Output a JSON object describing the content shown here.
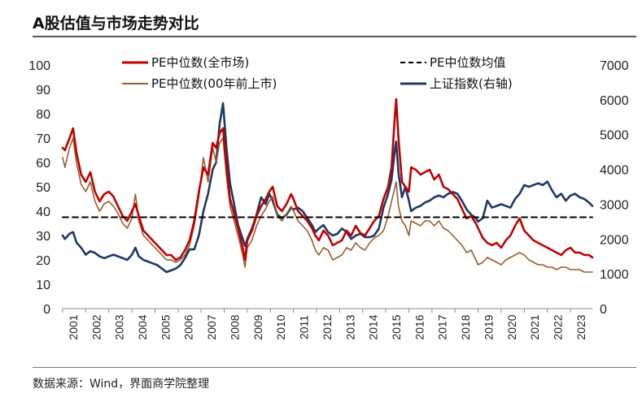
{
  "title": "A股估值与市场走势对比",
  "source": "数据来源：Wind，界面商学院整理",
  "colors": {
    "pe_all": "#c00000",
    "pe_pre2000": "#9c5a2c",
    "pe_mean": "#000000",
    "sh_index": "#1f3864"
  },
  "chart_data": {
    "type": "line",
    "title": "A股估值与市场走势对比",
    "x_range": [
      2001,
      2023.95
    ],
    "x_ticks": [
      "2001",
      "2002",
      "2003",
      "2004",
      "2005",
      "2006",
      "2007",
      "2008",
      "2009",
      "2010",
      "2011",
      "2012",
      "2013",
      "2014",
      "2015",
      "2016",
      "2017",
      "2018",
      "2019",
      "2020",
      "2021",
      "2022",
      "2023"
    ],
    "y_left": {
      "ticks": [
        0,
        10,
        20,
        30,
        40,
        50,
        60,
        70,
        80,
        90,
        100
      ],
      "lim": [
        0,
        100
      ]
    },
    "y_right": {
      "ticks": [
        0,
        1000,
        2000,
        3000,
        4000,
        5000,
        6000,
        7000
      ],
      "lim": [
        0,
        7000
      ]
    },
    "legend": [
      "PE中位数(全市场)",
      "PE中位数(00年前上市)",
      "PE中位数均值",
      "上证指数(右轴)"
    ],
    "series": [
      {
        "name": "PE中位数(全市场)",
        "axis": "left",
        "x": [
          2001.0,
          2001.1,
          2001.3,
          2001.45,
          2001.6,
          2001.8,
          2002.0,
          2002.2,
          2002.4,
          2002.6,
          2002.8,
          2003.0,
          2003.2,
          2003.4,
          2003.6,
          2003.8,
          2004.0,
          2004.15,
          2004.3,
          2004.5,
          2004.7,
          2004.9,
          2005.1,
          2005.3,
          2005.5,
          2005.7,
          2005.9,
          2006.1,
          2006.3,
          2006.5,
          2006.7,
          2006.9,
          2007.1,
          2007.3,
          2007.5,
          2007.65,
          2007.8,
          2007.95,
          2008.1,
          2008.25,
          2008.4,
          2008.6,
          2008.8,
          2008.9,
          2009.0,
          2009.2,
          2009.4,
          2009.6,
          2009.8,
          2009.95,
          2010.1,
          2010.3,
          2010.5,
          2010.7,
          2010.9,
          2011.0,
          2011.2,
          2011.4,
          2011.6,
          2011.8,
          2011.95,
          2012.1,
          2012.3,
          2012.5,
          2012.7,
          2012.9,
          2013.1,
          2013.3,
          2013.5,
          2013.7,
          2013.9,
          2014.1,
          2014.3,
          2014.5,
          2014.7,
          2014.9,
          2015.1,
          2015.25,
          2015.4,
          2015.45,
          2015.55,
          2015.7,
          2015.85,
          2016.0,
          2016.1,
          2016.3,
          2016.5,
          2016.7,
          2016.9,
          2017.1,
          2017.3,
          2017.5,
          2017.7,
          2017.9,
          2018.1,
          2018.3,
          2018.5,
          2018.7,
          2018.9,
          2019.0,
          2019.2,
          2019.4,
          2019.6,
          2019.8,
          2020.0,
          2020.2,
          2020.4,
          2020.6,
          2020.8,
          2021.0,
          2021.2,
          2021.4,
          2021.6,
          2021.8,
          2022.0,
          2022.2,
          2022.4,
          2022.6,
          2022.8,
          2023.0,
          2023.2,
          2023.4,
          2023.6,
          2023.8,
          2023.95
        ],
        "values": [
          66,
          65,
          70,
          74,
          64,
          55,
          52,
          56,
          48,
          44,
          47,
          48,
          46,
          42,
          38,
          36,
          40,
          43,
          38,
          32,
          30,
          28,
          26,
          24,
          22,
          22,
          20,
          21,
          24,
          28,
          36,
          48,
          58,
          55,
          68,
          66,
          72,
          74,
          58,
          45,
          40,
          33,
          25,
          20,
          28,
          32,
          38,
          42,
          45,
          48,
          50,
          42,
          40,
          43,
          47,
          45,
          40,
          38,
          36,
          33,
          30,
          28,
          32,
          30,
          26,
          27,
          28,
          32,
          30,
          34,
          31,
          30,
          33,
          36,
          38,
          45,
          50,
          58,
          80,
          86,
          70,
          52,
          50,
          48,
          58,
          57,
          55,
          56,
          57,
          53,
          55,
          50,
          49,
          47,
          45,
          41,
          37,
          38,
          35,
          33,
          29,
          27,
          26,
          27,
          25,
          28,
          30,
          34,
          37,
          32,
          30,
          28,
          27,
          26,
          25,
          24,
          23,
          22,
          24,
          25,
          23,
          23,
          22,
          22,
          21
        ]
      },
      {
        "name": "PE中位数(00年前上市)",
        "axis": "left",
        "x": [
          2001.0,
          2001.1,
          2001.3,
          2001.45,
          2001.6,
          2001.8,
          2002.0,
          2002.2,
          2002.4,
          2002.6,
          2002.8,
          2003.0,
          2003.2,
          2003.4,
          2003.6,
          2003.8,
          2004.0,
          2004.15,
          2004.3,
          2004.5,
          2004.7,
          2004.9,
          2005.1,
          2005.3,
          2005.5,
          2005.7,
          2005.9,
          2006.1,
          2006.3,
          2006.5,
          2006.7,
          2006.9,
          2007.1,
          2007.3,
          2007.5,
          2007.65,
          2007.8,
          2007.95,
          2008.1,
          2008.25,
          2008.4,
          2008.6,
          2008.8,
          2008.9,
          2009.0,
          2009.2,
          2009.4,
          2009.6,
          2009.8,
          2009.95,
          2010.1,
          2010.3,
          2010.5,
          2010.7,
          2010.9,
          2011.0,
          2011.2,
          2011.4,
          2011.6,
          2011.8,
          2011.95,
          2012.1,
          2012.3,
          2012.5,
          2012.7,
          2012.9,
          2013.1,
          2013.3,
          2013.5,
          2013.7,
          2013.9,
          2014.1,
          2014.3,
          2014.5,
          2014.7,
          2014.9,
          2015.1,
          2015.25,
          2015.4,
          2015.45,
          2015.55,
          2015.7,
          2015.85,
          2016.0,
          2016.1,
          2016.3,
          2016.5,
          2016.7,
          2016.9,
          2017.1,
          2017.3,
          2017.5,
          2017.7,
          2017.9,
          2018.1,
          2018.3,
          2018.5,
          2018.7,
          2018.9,
          2019.0,
          2019.2,
          2019.4,
          2019.6,
          2019.8,
          2020.0,
          2020.2,
          2020.4,
          2020.6,
          2020.8,
          2021.0,
          2021.2,
          2021.4,
          2021.6,
          2021.8,
          2022.0,
          2022.2,
          2022.4,
          2022.6,
          2022.8,
          2023.0,
          2023.2,
          2023.4,
          2023.6,
          2023.8,
          2023.95
        ],
        "values": [
          62,
          58,
          66,
          70,
          60,
          51,
          48,
          52,
          44,
          40,
          43,
          44,
          42,
          39,
          35,
          33,
          37,
          47,
          36,
          30,
          28,
          26,
          24,
          22,
          20,
          20,
          19,
          20,
          22,
          26,
          34,
          46,
          62,
          52,
          66,
          60,
          68,
          70,
          54,
          42,
          37,
          30,
          22,
          17,
          25,
          28,
          34,
          38,
          41,
          44,
          46,
          38,
          36,
          39,
          42,
          40,
          36,
          34,
          32,
          28,
          24,
          22,
          25,
          24,
          20,
          21,
          22,
          25,
          24,
          27,
          25,
          24,
          27,
          29,
          30,
          32,
          38,
          44,
          50,
          52,
          42,
          36,
          34,
          30,
          36,
          35,
          34,
          36,
          36,
          34,
          36,
          33,
          32,
          30,
          28,
          26,
          23,
          24,
          20,
          18,
          19,
          21,
          20,
          19,
          18,
          20,
          21,
          22,
          23,
          22,
          20,
          19,
          18,
          18,
          17,
          17,
          16,
          17,
          17,
          16,
          16,
          16,
          15,
          15,
          15
        ]
      },
      {
        "name": "PE中位数均值",
        "axis": "left",
        "x": [
          2001.0,
          2023.95
        ],
        "values": [
          37.5,
          37.5
        ]
      },
      {
        "name": "上证指数(右轴)",
        "axis": "right",
        "x": [
          2001.0,
          2001.1,
          2001.3,
          2001.45,
          2001.6,
          2001.8,
          2002.0,
          2002.2,
          2002.4,
          2002.6,
          2002.8,
          2003.0,
          2003.2,
          2003.4,
          2003.6,
          2003.8,
          2004.0,
          2004.15,
          2004.3,
          2004.5,
          2004.7,
          2004.9,
          2005.1,
          2005.3,
          2005.5,
          2005.7,
          2005.9,
          2006.1,
          2006.3,
          2006.5,
          2006.7,
          2006.9,
          2007.1,
          2007.3,
          2007.5,
          2007.65,
          2007.8,
          2007.95,
          2008.1,
          2008.25,
          2008.4,
          2008.6,
          2008.8,
          2008.9,
          2009.0,
          2009.2,
          2009.4,
          2009.6,
          2009.8,
          2009.95,
          2010.1,
          2010.3,
          2010.5,
          2010.7,
          2010.9,
          2011.0,
          2011.2,
          2011.4,
          2011.6,
          2011.8,
          2011.95,
          2012.1,
          2012.3,
          2012.5,
          2012.7,
          2012.9,
          2013.1,
          2013.3,
          2013.5,
          2013.7,
          2013.9,
          2014.1,
          2014.3,
          2014.5,
          2014.7,
          2014.9,
          2015.1,
          2015.25,
          2015.4,
          2015.45,
          2015.55,
          2015.7,
          2015.85,
          2016.0,
          2016.1,
          2016.3,
          2016.5,
          2016.7,
          2016.9,
          2017.1,
          2017.3,
          2017.5,
          2017.7,
          2017.9,
          2018.1,
          2018.3,
          2018.5,
          2018.7,
          2018.9,
          2019.0,
          2019.2,
          2019.4,
          2019.6,
          2019.8,
          2020.0,
          2020.2,
          2020.4,
          2020.6,
          2020.8,
          2021.0,
          2021.2,
          2021.4,
          2021.6,
          2021.8,
          2022.0,
          2022.2,
          2022.4,
          2022.6,
          2022.8,
          2023.0,
          2023.2,
          2023.4,
          2023.6,
          2023.8,
          2023.95
        ],
        "values": [
          2100,
          2000,
          2150,
          2200,
          1900,
          1750,
          1550,
          1650,
          1600,
          1500,
          1450,
          1500,
          1550,
          1500,
          1450,
          1400,
          1550,
          1750,
          1500,
          1400,
          1350,
          1300,
          1250,
          1150,
          1050,
          1100,
          1150,
          1250,
          1450,
          1700,
          1700,
          2100,
          2800,
          3300,
          4000,
          4200,
          5300,
          5900,
          4600,
          3600,
          3100,
          2400,
          2000,
          1800,
          2000,
          2300,
          2700,
          3200,
          3000,
          3300,
          3100,
          2700,
          2600,
          2700,
          2900,
          2850,
          2900,
          2800,
          2600,
          2400,
          2200,
          2300,
          2400,
          2200,
          2100,
          2150,
          2300,
          2200,
          2000,
          2100,
          2150,
          2050,
          2050,
          2100,
          2300,
          2900,
          3300,
          3700,
          4600,
          4800,
          3900,
          3200,
          3500,
          3100,
          2800,
          2900,
          2950,
          3050,
          3100,
          3200,
          3250,
          3200,
          3300,
          3350,
          3300,
          3100,
          2850,
          2700,
          2600,
          2500,
          2600,
          3100,
          2900,
          2950,
          3000,
          2950,
          2900,
          3150,
          3300,
          3550,
          3500,
          3550,
          3600,
          3550,
          3650,
          3400,
          3200,
          3300,
          3100,
          3250,
          3300,
          3200,
          3150,
          3050,
          2950
        ]
      }
    ]
  }
}
